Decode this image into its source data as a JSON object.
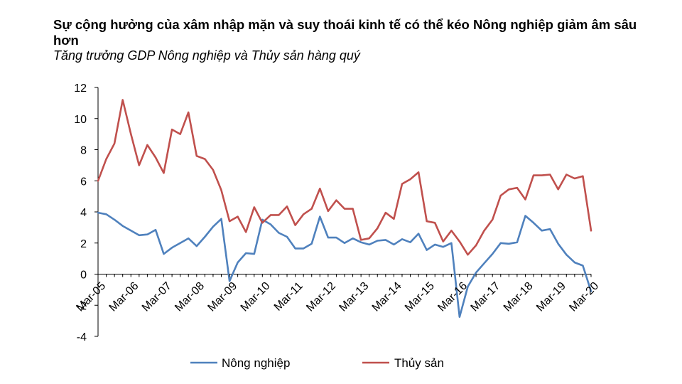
{
  "chart_data": {
    "type": "line",
    "title": "Sự cộng hưởng của xâm nhập mặn và suy thoái kinh tế có thể kéo Nông nghiệp giảm âm sâu hơn",
    "subtitle": "Tăng trưởng GDP Nông nghiệp và Thủy sản hàng quý",
    "xlabel": "",
    "ylabel": "",
    "ylim": [
      -4,
      12
    ],
    "yticks": [
      -4,
      -2,
      0,
      2,
      4,
      6,
      8,
      10,
      12
    ],
    "xtick_labels": [
      "Mar-05",
      "Mar-06",
      "Mar-07",
      "Mar-08",
      "Mar-09",
      "Mar-10",
      "Mar-11",
      "Mar-12",
      "Mar-13",
      "Mar-14",
      "Mar-15",
      "Mar-16",
      "Mar-17",
      "Mar-18",
      "Mar-19",
      "Mar-20"
    ],
    "x": [
      "Q1-05",
      "Q2-05",
      "Q3-05",
      "Q4-05",
      "Q1-06",
      "Q2-06",
      "Q3-06",
      "Q4-06",
      "Q1-07",
      "Q2-07",
      "Q3-07",
      "Q4-07",
      "Q1-08",
      "Q2-08",
      "Q3-08",
      "Q4-08",
      "Q1-09",
      "Q2-09",
      "Q3-09",
      "Q4-09",
      "Q1-10",
      "Q2-10",
      "Q3-10",
      "Q4-10",
      "Q1-11",
      "Q2-11",
      "Q3-11",
      "Q4-11",
      "Q1-12",
      "Q2-12",
      "Q3-12",
      "Q4-12",
      "Q1-13",
      "Q2-13",
      "Q3-13",
      "Q4-13",
      "Q1-14",
      "Q2-14",
      "Q3-14",
      "Q4-14",
      "Q1-15",
      "Q2-15",
      "Q3-15",
      "Q4-15",
      "Q1-16",
      "Q2-16",
      "Q3-16",
      "Q4-16",
      "Q1-17",
      "Q2-17",
      "Q3-17",
      "Q4-17",
      "Q1-18",
      "Q2-18",
      "Q3-18",
      "Q4-18",
      "Q1-19",
      "Q2-19",
      "Q3-19",
      "Q4-19",
      "Q1-20"
    ],
    "series": [
      {
        "name": "Nông nghiệp",
        "color": "#4f81bd",
        "values": [
          3.95,
          3.85,
          3.5,
          3.1,
          2.8,
          2.5,
          2.55,
          2.85,
          1.3,
          1.7,
          2.0,
          2.3,
          1.8,
          2.4,
          3.05,
          3.55,
          -0.45,
          0.75,
          1.35,
          1.3,
          3.5,
          3.2,
          2.65,
          2.4,
          1.65,
          1.65,
          1.95,
          3.7,
          2.35,
          2.35,
          2.0,
          2.3,
          2.05,
          1.9,
          2.15,
          2.2,
          1.9,
          2.25,
          2.05,
          2.6,
          1.55,
          1.9,
          1.75,
          2.0,
          -2.75,
          -0.8,
          0.1,
          0.7,
          1.3,
          2.0,
          1.95,
          2.05,
          3.75,
          3.3,
          2.8,
          2.9,
          1.95,
          1.25,
          0.75,
          0.55,
          -1.1
        ]
      },
      {
        "name": "Thủy sản",
        "color": "#c0504d",
        "values": [
          6.0,
          7.4,
          8.4,
          11.2,
          9.0,
          7.0,
          8.3,
          7.5,
          6.5,
          9.3,
          9.0,
          10.4,
          7.6,
          7.4,
          6.7,
          5.4,
          3.4,
          3.7,
          2.7,
          4.3,
          3.3,
          3.8,
          3.8,
          4.35,
          3.15,
          3.85,
          4.2,
          5.5,
          4.05,
          4.75,
          4.2,
          4.2,
          2.2,
          2.3,
          2.95,
          3.95,
          3.55,
          5.8,
          6.1,
          6.55,
          3.4,
          3.3,
          2.1,
          2.8,
          2.1,
          1.25,
          1.85,
          2.8,
          3.5,
          5.05,
          5.45,
          5.55,
          4.8,
          6.35,
          6.35,
          6.4,
          5.45,
          6.4,
          6.15,
          6.3,
          2.8
        ]
      }
    ],
    "legend_position": "bottom",
    "grid": false
  }
}
